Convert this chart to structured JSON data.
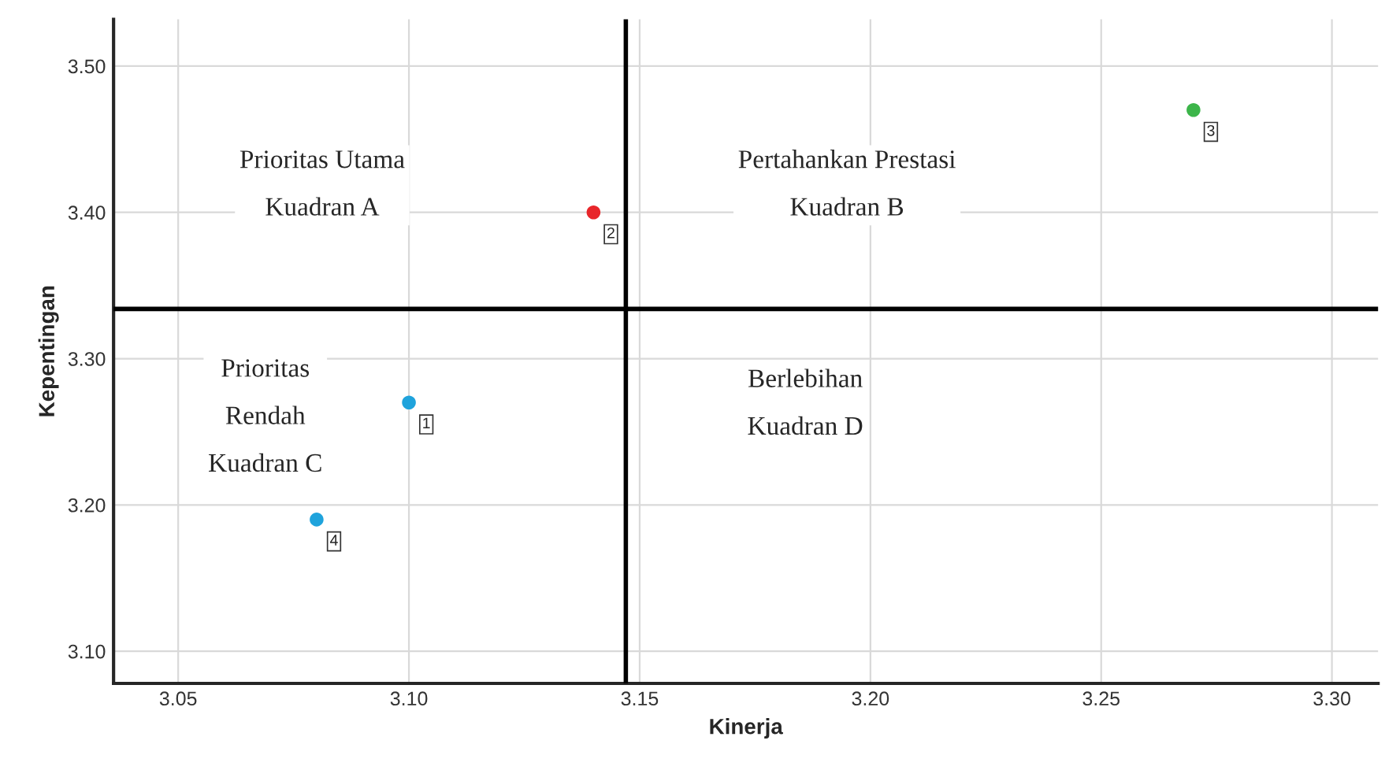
{
  "chart_data": {
    "type": "scatter",
    "xlabel": "Kinerja",
    "ylabel": "Kepentingan",
    "x": [
      3.1,
      3.14,
      3.27,
      3.08
    ],
    "values": [
      3.27,
      3.4,
      3.47,
      3.19
    ],
    "colors": [
      "#1fa3dc",
      "#e8262a",
      "#3cb54a",
      "#1fa3dc"
    ],
    "xlim": [
      3.036,
      3.31
    ],
    "xticks": [
      {
        "value": 3.05,
        "label": "3.05"
      },
      {
        "value": 3.1,
        "label": "3.10"
      },
      {
        "value": 3.15,
        "label": "3.15"
      },
      {
        "value": 3.2,
        "label": "3.20"
      },
      {
        "value": 3.25,
        "label": "3.25"
      },
      {
        "value": 3.3,
        "label": "3.30"
      }
    ],
    "ylim": [
      3.078,
      3.532
    ],
    "yticks": [
      {
        "value": 3.1,
        "label": "3.10"
      },
      {
        "value": 3.2,
        "label": "3.20"
      },
      {
        "value": 3.3,
        "label": "3.30"
      },
      {
        "value": 3.4,
        "label": "3.40"
      },
      {
        "value": 3.5,
        "label": "3.50"
      }
    ],
    "ref_lines": [
      {
        "axis": "x",
        "value": 3.147,
        "color": "#000000"
      },
      {
        "axis": "y",
        "value": 3.334,
        "color": "#000000"
      }
    ],
    "grid": true,
    "marker": "circle",
    "legend": false,
    "annotations": [
      {
        "text": "1",
        "x": 3.1,
        "y": 3.27
      },
      {
        "text": "2",
        "x": 3.14,
        "y": 3.4
      },
      {
        "text": "3",
        "x": 3.27,
        "y": 3.47
      },
      {
        "text": "4",
        "x": 3.08,
        "y": 3.19
      },
      "Prioritas Utama\nKuadran A",
      "Pertahankan Prestasi\nKuadran B",
      "Prioritas\nRendah\nKuadran C",
      "Berlebihan\nKuadran D"
    ]
  }
}
